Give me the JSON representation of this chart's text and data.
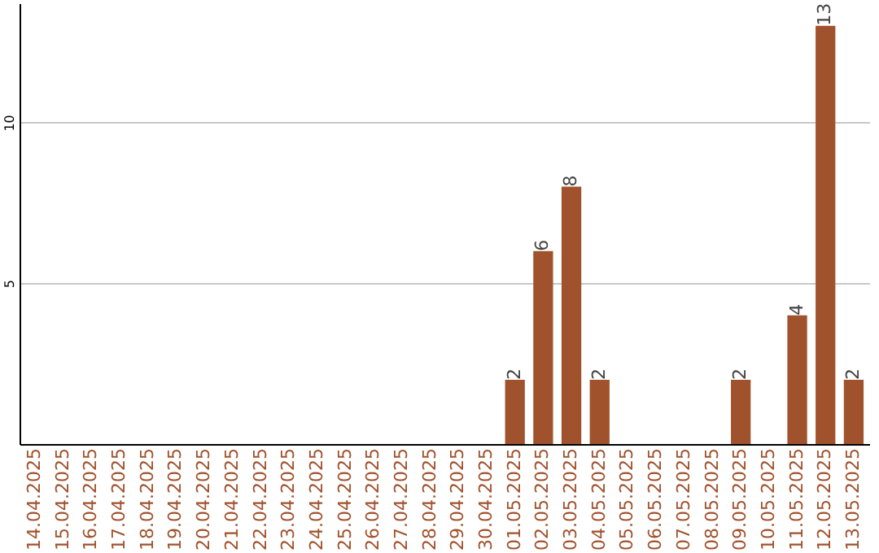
{
  "chart_data": {
    "type": "bar",
    "categories": [
      "14.04.2025",
      "15.04.2025",
      "16.04.2025",
      "17.04.2025",
      "18.04.2025",
      "19.04.2025",
      "20.04.2025",
      "21.04.2025",
      "22.04.2025",
      "23.04.2025",
      "24.04.2025",
      "25.04.2025",
      "26.04.2025",
      "27.04.2025",
      "28.04.2025",
      "29.04.2025",
      "30.04.2025",
      "01.05.2025",
      "02.05.2025",
      "03.05.2025",
      "04.05.2025",
      "05.05.2025",
      "06.05.2025",
      "07.05.2025",
      "08.05.2025",
      "09.05.2025",
      "10.05.2025",
      "11.05.2025",
      "12.05.2025",
      "13.05.2025"
    ],
    "values": [
      0,
      0,
      0,
      0,
      0,
      0,
      0,
      0,
      0,
      0,
      0,
      0,
      0,
      0,
      0,
      0,
      0,
      2,
      6,
      8,
      2,
      0,
      0,
      0,
      0,
      2,
      0,
      4,
      13,
      2
    ],
    "value_labels": [
      null,
      null,
      null,
      null,
      null,
      null,
      null,
      null,
      null,
      null,
      null,
      null,
      null,
      null,
      null,
      null,
      null,
      "2",
      "6",
      "8",
      "2",
      null,
      null,
      null,
      null,
      "2",
      null,
      "4",
      "13",
      "2"
    ],
    "color": "#a0522d",
    "ylim": [
      0,
      13.7
    ],
    "yticks": [
      5,
      10
    ],
    "grid": "y"
  }
}
